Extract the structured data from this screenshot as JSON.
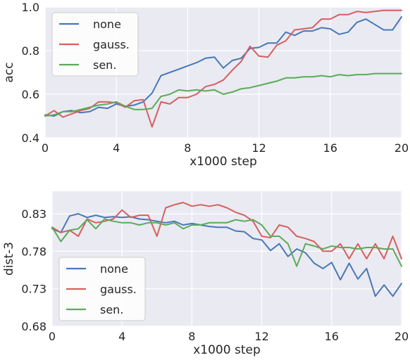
{
  "chart_data": [
    {
      "type": "line",
      "title": "",
      "xlabel": "x1000 step",
      "ylabel": "acc",
      "xlim": [
        0,
        20
      ],
      "ylim": [
        0.4,
        1.0
      ],
      "xticks": [
        0,
        4,
        8,
        12,
        16,
        20
      ],
      "xtick_labels": [
        "0",
        "4",
        "8",
        "12",
        "16",
        "20"
      ],
      "yticks": [
        0.4,
        0.6,
        0.8,
        1.0
      ],
      "ytick_labels": [
        "0.4",
        "0.6",
        "0.8",
        "1.0"
      ],
      "grid": true,
      "legend": "top-left",
      "x": [
        0,
        0.5,
        1,
        1.5,
        2,
        2.5,
        3,
        3.5,
        4,
        4.5,
        5,
        5.5,
        6,
        6.5,
        7,
        7.5,
        8,
        8.5,
        9,
        9.5,
        10,
        10.5,
        11,
        11.5,
        12,
        12.5,
        13,
        13.5,
        14,
        14.5,
        15,
        15.5,
        16,
        16.5,
        17,
        17.5,
        18,
        18.5,
        19,
        19.5,
        20
      ],
      "series": [
        {
          "name": "none",
          "color": "#4878b8",
          "values": [
            0.505,
            0.5,
            0.52,
            0.525,
            0.515,
            0.52,
            0.54,
            0.535,
            0.555,
            0.545,
            0.55,
            0.565,
            0.605,
            0.685,
            0.7,
            0.715,
            0.73,
            0.745,
            0.765,
            0.77,
            0.72,
            0.755,
            0.765,
            0.81,
            0.815,
            0.835,
            0.835,
            0.885,
            0.87,
            0.89,
            0.89,
            0.905,
            0.9,
            0.875,
            0.885,
            0.93,
            0.945,
            0.92,
            0.895,
            0.895,
            0.955
          ]
        },
        {
          "name": "gauss.",
          "color": "#d65f5f",
          "values": [
            0.5,
            0.525,
            0.495,
            0.51,
            0.525,
            0.535,
            0.565,
            0.565,
            0.56,
            0.54,
            0.57,
            0.575,
            0.45,
            0.565,
            0.555,
            0.585,
            0.585,
            0.6,
            0.635,
            0.645,
            0.665,
            0.71,
            0.75,
            0.82,
            0.775,
            0.77,
            0.825,
            0.845,
            0.895,
            0.9,
            0.905,
            0.945,
            0.945,
            0.965,
            0.965,
            0.98,
            0.975,
            0.98,
            0.985,
            0.985,
            0.985
          ]
        },
        {
          "name": "sen.",
          "color": "#5aab58",
          "values": [
            0.5,
            0.505,
            0.52,
            0.52,
            0.53,
            0.54,
            0.55,
            0.555,
            0.565,
            0.545,
            0.53,
            0.53,
            0.535,
            0.59,
            0.6,
            0.62,
            0.615,
            0.62,
            0.615,
            0.62,
            0.6,
            0.61,
            0.625,
            0.63,
            0.64,
            0.65,
            0.66,
            0.675,
            0.675,
            0.68,
            0.68,
            0.685,
            0.68,
            0.69,
            0.685,
            0.69,
            0.69,
            0.695,
            0.695,
            0.695,
            0.695
          ]
        }
      ]
    },
    {
      "type": "line",
      "title": "",
      "xlabel": "x1000 step",
      "ylabel": "dist-3",
      "xlim": [
        0,
        20
      ],
      "ylim": [
        0.68,
        0.86
      ],
      "xticks": [
        0,
        4,
        8,
        12,
        16,
        20
      ],
      "xtick_labels": [
        "0",
        "4",
        "8",
        "12",
        "16",
        "20"
      ],
      "yticks": [
        0.68,
        0.73,
        0.78,
        0.83
      ],
      "ytick_labels": [
        "0.68",
        "0.73",
        "0.78",
        "0.83"
      ],
      "grid": true,
      "legend": "bottom-left",
      "x": [
        0,
        0.5,
        1,
        1.5,
        2,
        2.5,
        3,
        3.5,
        4,
        4.5,
        5,
        5.5,
        6,
        6.5,
        7,
        7.5,
        8,
        8.5,
        9,
        9.5,
        10,
        10.5,
        11,
        11.5,
        12,
        12.5,
        13,
        13.5,
        14,
        14.5,
        15,
        15.5,
        16,
        16.5,
        17,
        17.5,
        18,
        18.5,
        19,
        19.5,
        20
      ],
      "series": [
        {
          "name": "none",
          "color": "#4878b8",
          "values": [
            0.81,
            0.805,
            0.827,
            0.83,
            0.825,
            0.828,
            0.825,
            0.826,
            0.825,
            0.826,
            0.823,
            0.822,
            0.82,
            0.818,
            0.82,
            0.815,
            0.817,
            0.815,
            0.813,
            0.812,
            0.812,
            0.807,
            0.806,
            0.797,
            0.795,
            0.781,
            0.79,
            0.773,
            0.783,
            0.778,
            0.764,
            0.757,
            0.765,
            0.742,
            0.764,
            0.743,
            0.757,
            0.72,
            0.735,
            0.72,
            0.737
          ]
        },
        {
          "name": "gauss.",
          "color": "#d65f5f",
          "values": [
            0.812,
            0.805,
            0.808,
            0.8,
            0.823,
            0.818,
            0.82,
            0.823,
            0.835,
            0.825,
            0.828,
            0.828,
            0.8,
            0.838,
            0.842,
            0.845,
            0.84,
            0.842,
            0.84,
            0.842,
            0.838,
            0.832,
            0.828,
            0.82,
            0.8,
            0.798,
            0.815,
            0.812,
            0.8,
            0.797,
            0.793,
            0.78,
            0.78,
            0.79,
            0.77,
            0.79,
            0.77,
            0.79,
            0.77,
            0.8,
            0.77
          ]
        },
        {
          "name": "sen.",
          "color": "#5aab58",
          "values": [
            0.812,
            0.793,
            0.808,
            0.81,
            0.822,
            0.81,
            0.823,
            0.82,
            0.818,
            0.818,
            0.815,
            0.818,
            0.818,
            0.815,
            0.818,
            0.81,
            0.815,
            0.815,
            0.818,
            0.818,
            0.818,
            0.822,
            0.82,
            0.822,
            0.815,
            0.8,
            0.8,
            0.79,
            0.76,
            0.79,
            0.787,
            0.783,
            0.787,
            0.785,
            0.785,
            0.783,
            0.785,
            0.785,
            0.783,
            0.783,
            0.76
          ]
        }
      ]
    }
  ]
}
